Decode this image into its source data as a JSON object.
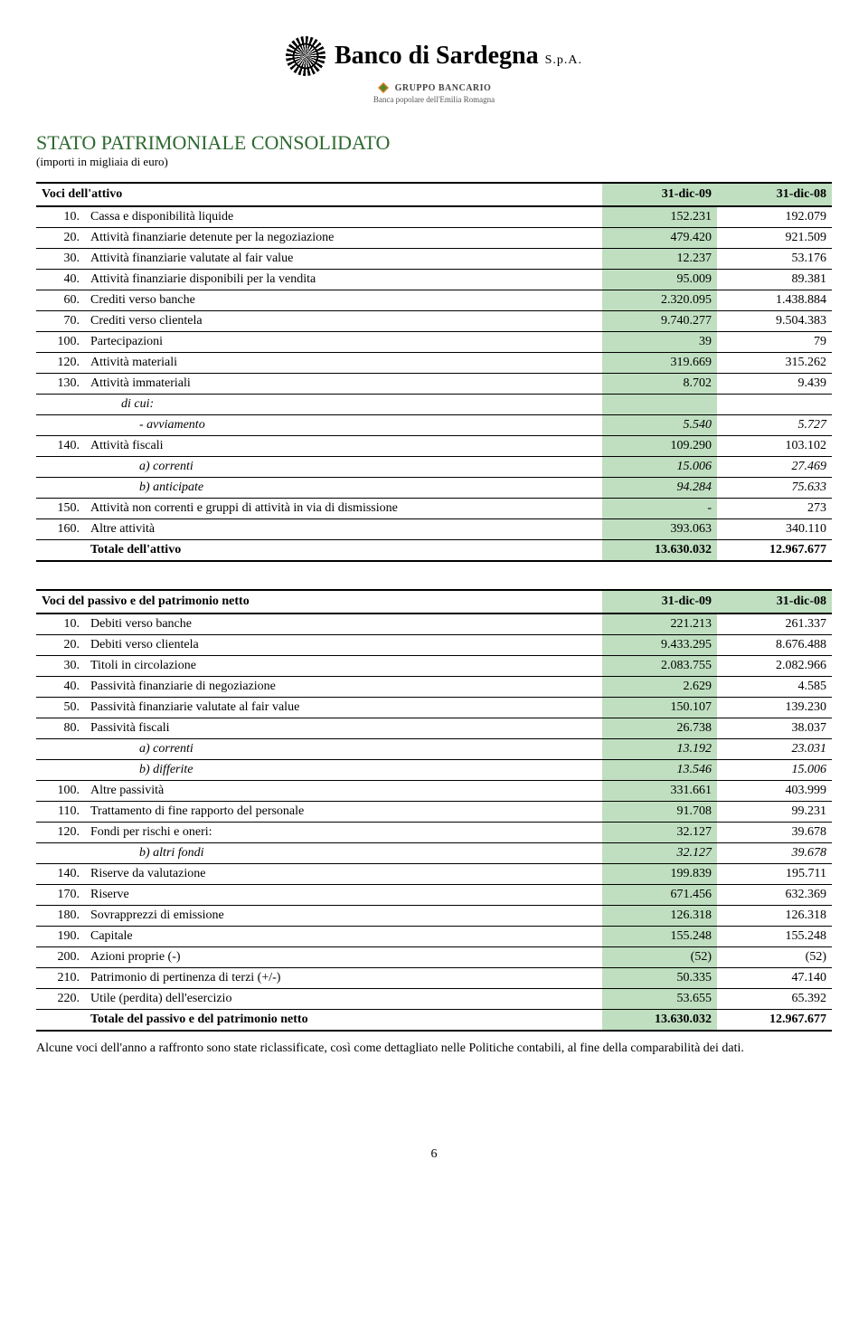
{
  "header": {
    "bank_name": "Banco di Sardegna",
    "suffix": "S.p.A.",
    "gruppo_label": "GRUPPO BANCARIO",
    "gruppo_sub": "Banca popolare dell'Emilia Romagna"
  },
  "section": {
    "title": "STATO PATRIMONIALE CONSOLIDATO",
    "subtitle": "(importi in migliaia di euro)"
  },
  "attivo_table": {
    "header_label": "Voci dell'attivo",
    "col1": "31-dic-09",
    "col2": "31-dic-08",
    "rows": [
      {
        "code": "10.",
        "desc": "Cassa e disponibilità liquide",
        "v1": "152.231",
        "v2": "192.079"
      },
      {
        "code": "20.",
        "desc": "Attività finanziarie detenute per la negoziazione",
        "v1": "479.420",
        "v2": "921.509"
      },
      {
        "code": "30.",
        "desc": "Attività finanziarie valutate al fair value",
        "v1": "12.237",
        "v2": "53.176"
      },
      {
        "code": "40.",
        "desc": "Attività finanziarie disponibili per la vendita",
        "v1": "95.009",
        "v2": "89.381"
      },
      {
        "code": "60.",
        "desc": "Crediti verso banche",
        "v1": "2.320.095",
        "v2": "1.438.884"
      },
      {
        "code": "70.",
        "desc": "Crediti verso clientela",
        "v1": "9.740.277",
        "v2": "9.504.383"
      },
      {
        "code": "100.",
        "desc": "Partecipazioni",
        "v1": "39",
        "v2": "79"
      },
      {
        "code": "120.",
        "desc": "Attività materiali",
        "v1": "319.669",
        "v2": "315.262"
      },
      {
        "code": "130.",
        "desc": "Attività immateriali",
        "v1": "8.702",
        "v2": "9.439"
      },
      {
        "type": "dicui",
        "desc": "di cui:",
        "v1": "",
        "v2": ""
      },
      {
        "type": "sub",
        "desc": "- avviamento",
        "v1": "5.540",
        "v2": "5.727"
      },
      {
        "code": "140.",
        "desc": "Attività fiscali",
        "v1": "109.290",
        "v2": "103.102"
      },
      {
        "type": "sub-nodash",
        "desc": "a) correnti",
        "v1": "15.006",
        "v2": "27.469"
      },
      {
        "type": "sub-nodash",
        "desc": "b) anticipate",
        "v1": "94.284",
        "v2": "75.633"
      },
      {
        "code": "150.",
        "desc": "Attività non correnti e gruppi di attività in via di dismissione",
        "v1": "-",
        "v2": "273"
      },
      {
        "code": "160.",
        "desc": "Altre attività",
        "v1": "393.063",
        "v2": "340.110"
      }
    ],
    "total": {
      "desc": "Totale dell'attivo",
      "v1": "13.630.032",
      "v2": "12.967.677"
    }
  },
  "passivo_table": {
    "header_label": "Voci del passivo e del patrimonio netto",
    "col1": "31-dic-09",
    "col2": "31-dic-08",
    "rows": [
      {
        "code": "10.",
        "desc": "Debiti verso banche",
        "v1": "221.213",
        "v2": "261.337"
      },
      {
        "code": "20.",
        "desc": "Debiti verso clientela",
        "v1": "9.433.295",
        "v2": "8.676.488"
      },
      {
        "code": "30.",
        "desc": "Titoli in circolazione",
        "v1": "2.083.755",
        "v2": "2.082.966"
      },
      {
        "code": "40.",
        "desc": "Passività finanziarie di negoziazione",
        "v1": "2.629",
        "v2": "4.585"
      },
      {
        "code": "50.",
        "desc": "Passività finanziarie valutate al fair value",
        "v1": "150.107",
        "v2": "139.230"
      },
      {
        "code": "80.",
        "desc": "Passività fiscali",
        "v1": "26.738",
        "v2": "38.037"
      },
      {
        "type": "sub-nodash",
        "desc": "a) correnti",
        "v1": "13.192",
        "v2": "23.031"
      },
      {
        "type": "sub-nodash",
        "desc": "b) differite",
        "v1": "13.546",
        "v2": "15.006"
      },
      {
        "code": "100.",
        "desc": "Altre passività",
        "v1": "331.661",
        "v2": "403.999"
      },
      {
        "code": "110.",
        "desc": "Trattamento di fine rapporto del personale",
        "v1": "91.708",
        "v2": "99.231"
      },
      {
        "code": "120.",
        "desc": "Fondi per rischi e oneri:",
        "v1": "32.127",
        "v2": "39.678"
      },
      {
        "type": "sub-nodash",
        "desc": "b) altri fondi",
        "v1": "32.127",
        "v2": "39.678"
      },
      {
        "code": "140.",
        "desc": "Riserve da valutazione",
        "v1": "199.839",
        "v2": "195.711"
      },
      {
        "code": "170.",
        "desc": "Riserve",
        "v1": "671.456",
        "v2": "632.369"
      },
      {
        "code": "180.",
        "desc": "Sovrapprezzi di emissione",
        "v1": "126.318",
        "v2": "126.318"
      },
      {
        "code": "190.",
        "desc": "Capitale",
        "v1": "155.248",
        "v2": "155.248"
      },
      {
        "code": "200.",
        "desc": "Azioni proprie (-)",
        "v1": "(52)",
        "v2": "(52)"
      },
      {
        "code": "210.",
        "desc": "Patrimonio di pertinenza di terzi (+/-)",
        "v1": "50.335",
        "v2": "47.140"
      },
      {
        "code": "220.",
        "desc": "Utile (perdita) dell'esercizio",
        "v1": "53.655",
        "v2": "65.392"
      }
    ],
    "total": {
      "desc": "Totale del passivo e del patrimonio netto",
      "v1": "13.630.032",
      "v2": "12.967.677"
    }
  },
  "note": "Alcune voci dell'anno a raffronto sono state riclassificate, così come dettagliato nelle Politiche contabili, al fine della comparabilità dei dati.",
  "page": "6"
}
